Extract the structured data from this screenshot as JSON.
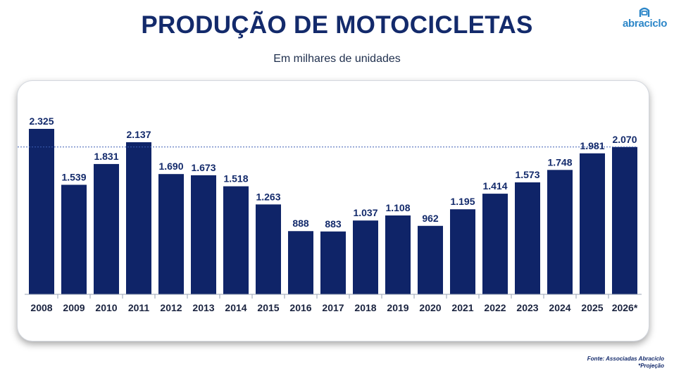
{
  "header": {
    "title": "PRODUÇÃO DE MOTOCICLETAS",
    "subtitle": "Em milhares de unidades"
  },
  "logo": {
    "text": "abraciclo"
  },
  "footer": {
    "source": "Fonte: Associadas Abraciclo",
    "note": "*Projeção"
  },
  "colors": {
    "bar": "#0f2468",
    "title": "#132a6b",
    "reference_line": "#3b5fb3",
    "brand": "#2c86c8"
  },
  "chart_data": {
    "type": "bar",
    "title": "PRODUÇÃO DE MOTOCICLETAS",
    "subtitle": "Em milhares de unidades",
    "xlabel": "",
    "ylabel": "",
    "categories": [
      "2008",
      "2009",
      "2010",
      "2011",
      "2012",
      "2013",
      "2014",
      "2015",
      "2016",
      "2017",
      "2018",
      "2019",
      "2020",
      "2021",
      "2022",
      "2023",
      "2024",
      "2025",
      "2026*"
    ],
    "values": [
      2325,
      1539,
      1831,
      2137,
      1690,
      1673,
      1518,
      1263,
      888,
      883,
      1037,
      1108,
      962,
      1195,
      1414,
      1573,
      1748,
      1981,
      2070
    ],
    "labels": [
      "2.325",
      "1.539",
      "1.831",
      "2.137",
      "1.690",
      "1.673",
      "1.518",
      "1.263",
      "888",
      "883",
      "1.037",
      "1.108",
      "962",
      "1.195",
      "1.414",
      "1.573",
      "1.748",
      "1.981",
      "2.070"
    ],
    "reference_line": {
      "value": 2070,
      "style": "dotted"
    },
    "ylim": [
      0,
      2325
    ],
    "grid": false,
    "legend": "none"
  }
}
